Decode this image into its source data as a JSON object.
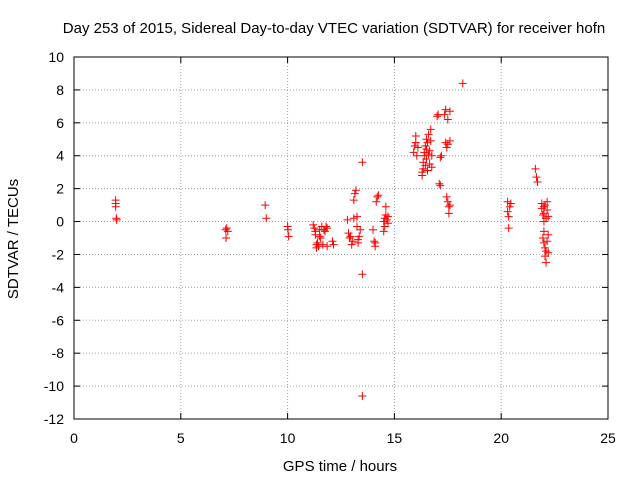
{
  "chart_data": {
    "type": "scatter",
    "title": "Day 253 of 2015, Sidereal Day-to-day VTEC variation (SDTVAR) for receiver hofn",
    "xlabel": "GPS time / hours",
    "ylabel": "SDTVAR / TECUs",
    "xlim": [
      0,
      25
    ],
    "ylim": [
      -12,
      10
    ],
    "xticks": [
      0,
      5,
      10,
      15,
      20,
      25
    ],
    "yticks": [
      -12,
      -10,
      -8,
      -6,
      -4,
      -2,
      0,
      2,
      4,
      6,
      8,
      10
    ],
    "grid": true,
    "marker": "plus",
    "colors": {
      "series": "#ff0000",
      "grid": "#a0a0a0",
      "axis": "#000000"
    },
    "series": [
      {
        "name": "SDTVAR",
        "points": [
          [
            1.95,
            1.3
          ],
          [
            1.95,
            1.1
          ],
          [
            1.95,
            0.9
          ],
          [
            1.98,
            0.2
          ],
          [
            2.0,
            0.1
          ],
          [
            7.1,
            -0.5
          ],
          [
            7.12,
            -1.0
          ],
          [
            7.15,
            -0.4
          ],
          [
            7.2,
            -0.6
          ],
          [
            8.95,
            1.0
          ],
          [
            9.0,
            0.2
          ],
          [
            10.0,
            -0.3
          ],
          [
            10.02,
            -0.5
          ],
          [
            10.05,
            -0.9
          ],
          [
            11.2,
            -0.2
          ],
          [
            11.25,
            -0.4
          ],
          [
            11.3,
            -0.6
          ],
          [
            11.3,
            -0.8
          ],
          [
            11.35,
            -1.4
          ],
          [
            11.35,
            -1.6
          ],
          [
            11.4,
            -1.3
          ],
          [
            11.45,
            -1.5
          ],
          [
            11.5,
            -0.9
          ],
          [
            11.5,
            -0.5
          ],
          [
            11.55,
            -1.0
          ],
          [
            11.6,
            -0.3
          ],
          [
            11.65,
            -1.4
          ],
          [
            11.7,
            -0.5
          ],
          [
            11.75,
            -0.6
          ],
          [
            11.8,
            -0.3
          ],
          [
            11.85,
            -0.4
          ],
          [
            11.85,
            -1.5
          ],
          [
            12.1,
            -1.2
          ],
          [
            12.15,
            -1.4
          ],
          [
            12.8,
            0.1
          ],
          [
            12.85,
            -0.7
          ],
          [
            12.9,
            -1.0
          ],
          [
            12.95,
            -0.9
          ],
          [
            13.0,
            -1.4
          ],
          [
            13.05,
            -1.2
          ],
          [
            13.1,
            0.2
          ],
          [
            13.1,
            1.3
          ],
          [
            13.15,
            1.7
          ],
          [
            13.2,
            1.9
          ],
          [
            13.25,
            0.3
          ],
          [
            13.25,
            -0.3
          ],
          [
            13.3,
            -1.1
          ],
          [
            13.3,
            -1.3
          ],
          [
            13.35,
            -0.9
          ],
          [
            13.4,
            -0.5
          ],
          [
            13.5,
            3.6
          ],
          [
            13.5,
            -3.2
          ],
          [
            13.5,
            -10.6
          ],
          [
            14.0,
            -0.5
          ],
          [
            14.05,
            -1.2
          ],
          [
            14.1,
            -1.5
          ],
          [
            14.1,
            -1.3
          ],
          [
            14.15,
            1.2
          ],
          [
            14.2,
            1.5
          ],
          [
            14.25,
            1.6
          ],
          [
            14.5,
            0.0
          ],
          [
            14.5,
            -0.6
          ],
          [
            14.55,
            0.2
          ],
          [
            14.55,
            -0.3
          ],
          [
            14.6,
            0.4
          ],
          [
            14.6,
            0.9
          ],
          [
            14.65,
            0.1
          ],
          [
            14.7,
            -0.1
          ],
          [
            14.7,
            0.3
          ],
          [
            15.9,
            4.2
          ],
          [
            15.95,
            4.6
          ],
          [
            16.0,
            5.2
          ],
          [
            16.0,
            4.8
          ],
          [
            16.05,
            4.0
          ],
          [
            16.1,
            4.5
          ],
          [
            16.3,
            3.0
          ],
          [
            16.3,
            2.8
          ],
          [
            16.35,
            3.2
          ],
          [
            16.35,
            3.6
          ],
          [
            16.4,
            4.0
          ],
          [
            16.4,
            4.2
          ],
          [
            16.45,
            3.4
          ],
          [
            16.45,
            4.6
          ],
          [
            16.5,
            3.8
          ],
          [
            16.5,
            4.4
          ],
          [
            16.5,
            5.0
          ],
          [
            16.55,
            3.1
          ],
          [
            16.55,
            4.8
          ],
          [
            16.6,
            4.1
          ],
          [
            16.6,
            5.3
          ],
          [
            16.65,
            3.5
          ],
          [
            16.65,
            4.3
          ],
          [
            16.7,
            5.6
          ],
          [
            16.7,
            4.9
          ],
          [
            16.75,
            3.3
          ],
          [
            16.75,
            4.0
          ],
          [
            17.0,
            6.4
          ],
          [
            17.05,
            6.5
          ],
          [
            17.1,
            2.3
          ],
          [
            17.15,
            2.2
          ],
          [
            17.15,
            3.9
          ],
          [
            17.2,
            4.0
          ],
          [
            17.35,
            6.5
          ],
          [
            17.4,
            6.8
          ],
          [
            17.4,
            4.8
          ],
          [
            17.45,
            4.5
          ],
          [
            17.45,
            1.5
          ],
          [
            17.5,
            6.2
          ],
          [
            17.5,
            4.7
          ],
          [
            17.5,
            1.2
          ],
          [
            17.55,
            0.9
          ],
          [
            17.55,
            0.5
          ],
          [
            17.6,
            6.7
          ],
          [
            17.6,
            4.9
          ],
          [
            17.6,
            1.0
          ],
          [
            18.2,
            8.4
          ],
          [
            20.3,
            1.2
          ],
          [
            20.3,
            0.6
          ],
          [
            20.35,
            -0.4
          ],
          [
            20.35,
            0.3
          ],
          [
            20.4,
            0.9
          ],
          [
            20.45,
            1.1
          ],
          [
            21.6,
            3.2
          ],
          [
            21.65,
            2.7
          ],
          [
            21.7,
            2.4
          ],
          [
            21.9,
            1.1
          ],
          [
            21.9,
            0.8
          ],
          [
            21.95,
            0.4
          ],
          [
            21.95,
            -1.0
          ],
          [
            22.0,
            0.9
          ],
          [
            22.0,
            0.5
          ],
          [
            22.0,
            0.0
          ],
          [
            22.0,
            -0.6
          ],
          [
            22.0,
            -1.3
          ],
          [
            22.05,
            1.0
          ],
          [
            22.05,
            -1.6
          ],
          [
            22.05,
            -2.1
          ],
          [
            22.1,
            0.2
          ],
          [
            22.1,
            -1.8
          ],
          [
            22.1,
            -2.5
          ],
          [
            22.15,
            0.7
          ],
          [
            22.15,
            1.2
          ],
          [
            22.15,
            -1.2
          ],
          [
            22.2,
            -0.8
          ],
          [
            22.2,
            0.3
          ],
          [
            22.2,
            -1.9
          ]
        ]
      }
    ]
  }
}
